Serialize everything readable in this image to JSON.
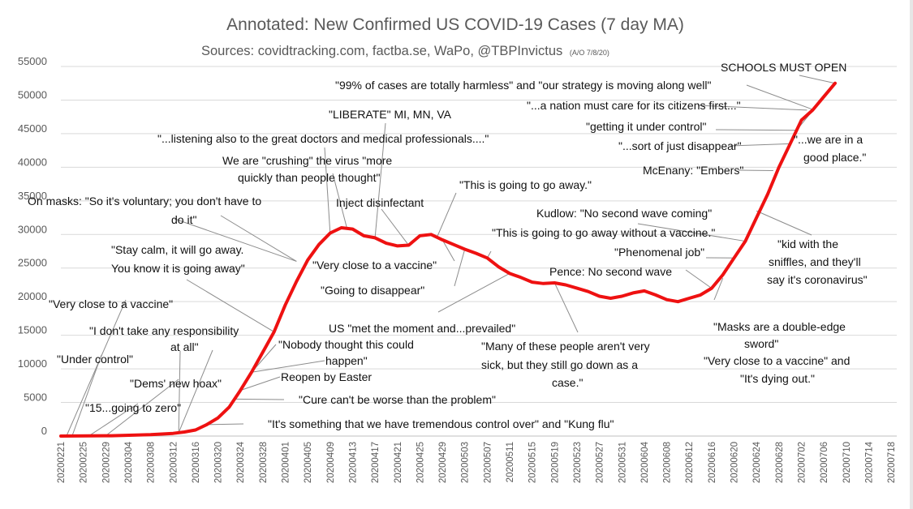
{
  "chart_data": {
    "type": "line",
    "title": "Annotated: New Confirmed US COVID-19 Cases (7 day MA)",
    "subtitle": "Sources: covidtracking.com, factba.se, WaPo, @TBPInvictus",
    "subtitle_note": "(A/O 7/8/20)",
    "ylim": [
      0,
      55000
    ],
    "yticks": [
      "0",
      "5000",
      "10000",
      "15000",
      "20000",
      "25000",
      "30000",
      "35000",
      "40000",
      "45000",
      "50000",
      "55000"
    ],
    "xticks": [
      "20200221",
      "20200225",
      "20200229",
      "20200304",
      "20200308",
      "20200312",
      "20200316",
      "20200320",
      "20200324",
      "20200328",
      "20200401",
      "20200405",
      "20200409",
      "20200413",
      "20200417",
      "20200421",
      "20200425",
      "20200429",
      "20200503",
      "20200507",
      "20200511",
      "20200515",
      "20200519",
      "20200523",
      "20200527",
      "20200531",
      "20200604",
      "20200608",
      "20200612",
      "20200616",
      "20200620",
      "20200624",
      "20200628",
      "20200702",
      "20200706",
      "20200710",
      "20200714",
      "20200718"
    ],
    "series": [
      {
        "color": "#ee1111",
        "points": [
          [
            "20200221",
            0
          ],
          [
            "20200301",
            50
          ],
          [
            "20200308",
            200
          ],
          [
            "20200312",
            400
          ],
          [
            "20200314",
            600
          ],
          [
            "20200316",
            900
          ],
          [
            "20200318",
            1700
          ],
          [
            "20200320",
            2700
          ],
          [
            "20200322",
            4300
          ],
          [
            "20200324",
            6800
          ],
          [
            "20200326",
            9500
          ],
          [
            "20200328",
            12500
          ],
          [
            "20200330",
            15500
          ],
          [
            "20200401",
            19500
          ],
          [
            "20200403",
            23000
          ],
          [
            "20200405",
            26200
          ],
          [
            "20200407",
            28500
          ],
          [
            "20200409",
            30200
          ],
          [
            "20200411",
            31000
          ],
          [
            "20200413",
            30800
          ],
          [
            "20200415",
            29800
          ],
          [
            "20200417",
            29500
          ],
          [
            "20200419",
            28700
          ],
          [
            "20200421",
            28300
          ],
          [
            "20200423",
            28400
          ],
          [
            "20200425",
            29800
          ],
          [
            "20200427",
            30000
          ],
          [
            "20200429",
            29200
          ],
          [
            "20200501",
            28500
          ],
          [
            "20200503",
            27800
          ],
          [
            "20200505",
            27200
          ],
          [
            "20200507",
            26500
          ],
          [
            "20200509",
            25200
          ],
          [
            "20200511",
            24200
          ],
          [
            "20200513",
            23600
          ],
          [
            "20200515",
            22900
          ],
          [
            "20200517",
            22700
          ],
          [
            "20200519",
            22800
          ],
          [
            "20200521",
            22500
          ],
          [
            "20200523",
            22000
          ],
          [
            "20200525",
            21500
          ],
          [
            "20200527",
            20800
          ],
          [
            "20200529",
            20500
          ],
          [
            "20200531",
            20800
          ],
          [
            "20200602",
            21300
          ],
          [
            "20200604",
            21600
          ],
          [
            "20200606",
            21000
          ],
          [
            "20200608",
            20300
          ],
          [
            "20200610",
            20000
          ],
          [
            "20200612",
            20500
          ],
          [
            "20200614",
            21000
          ],
          [
            "20200616",
            22000
          ],
          [
            "20200618",
            24000
          ],
          [
            "20200620",
            26500
          ],
          [
            "20200622",
            29000
          ],
          [
            "20200624",
            32500
          ],
          [
            "20200626",
            36000
          ],
          [
            "20200628",
            40000
          ],
          [
            "20200630",
            43500
          ],
          [
            "20200702",
            47000
          ],
          [
            "20200704",
            48500
          ],
          [
            "20200706",
            50500
          ],
          [
            "20200708",
            52500
          ]
        ]
      }
    ],
    "annotations": [
      {
        "text": "\"Very close to a vaccine\"",
        "date": "20200222",
        "value": 0
      },
      {
        "text": "\"Under control\"",
        "date": "20200223",
        "value": 0
      },
      {
        "text": "\"I don't take any responsibility",
        "date": "20200313",
        "value": 500
      },
      {
        "text": "at all\"",
        "date": "20200313",
        "value": 500
      },
      {
        "text": "\"Dems' new hoax\"",
        "date": "20200229",
        "value": 50
      },
      {
        "text": "\"15...going to zero\"",
        "date": "20200226",
        "value": 20
      },
      {
        "text": "\"It's something that we have tremendous control over\" and \"Kung flu\"",
        "date": "20200318",
        "value": 1700
      },
      {
        "text": "\"Cure can't be worse than the problem\"",
        "date": "20200323",
        "value": 5500
      },
      {
        "text": "Reopen by Easter",
        "date": "20200324",
        "value": 6800
      },
      {
        "text": "\"Nobody thought this could",
        "date": "20200326",
        "value": 9500
      },
      {
        "text": "happen\"",
        "date": "20200326",
        "value": 9500
      },
      {
        "text": "\"Stay calm, it will go away.",
        "date": "20200330",
        "value": 15500
      },
      {
        "text": "You know it is going away\"",
        "date": "20200330",
        "value": 15500
      },
      {
        "text": "On masks: \"So it's voluntary; you don't have to",
        "date": "20200403",
        "value": 26000
      },
      {
        "text": "do it\"",
        "date": "20200403",
        "value": 26000
      },
      {
        "text": "We are \"crushing\" the virus \"more",
        "date": "20200412",
        "value": 30900
      },
      {
        "text": "quickly than people thought\"",
        "date": "20200412",
        "value": 30900
      },
      {
        "text": "\"...listening also to the great doctors and medical professionals....\"",
        "date": "20200409",
        "value": 30200
      },
      {
        "text": "\"LIBERATE\" MI, MN, VA",
        "date": "20200417",
        "value": 29500
      },
      {
        "text": "Inject disinfectant",
        "date": "20200423",
        "value": 28400
      },
      {
        "text": "\"This is going to go away.\"",
        "date": "20200428",
        "value": 29500
      },
      {
        "text": "\"Very close to a vaccine\"",
        "date": "20200429",
        "value": 29200
      },
      {
        "text": "\"Going to disappear\"",
        "date": "20200503",
        "value": 27800
      },
      {
        "text": "US \"met the moment and...prevailed\"",
        "date": "20200511",
        "value": 24200
      },
      {
        "text": "\"Many of these people aren't very",
        "date": "20200519",
        "value": 22800
      },
      {
        "text": "sick, but they still go down as a",
        "date": "20200519",
        "value": 22800
      },
      {
        "text": "case.\"",
        "date": "20200519",
        "value": 22800
      },
      {
        "text": "\"This is going to go away without a vaccine.\"",
        "date": "20200507",
        "value": 26500
      },
      {
        "text": "Kudlow: \"No second wave coming\"",
        "date": "20200622",
        "value": 29000
      },
      {
        "text": "\"Phenomenal job\"",
        "date": "20200620",
        "value": 26500
      },
      {
        "text": "Pence: No second wave",
        "date": "20200616",
        "value": 22000
      },
      {
        "text": "\"Masks are a double-edge",
        "date": "20200618",
        "value": 23500
      },
      {
        "text": "sword\"",
        "date": "20200618",
        "value": 23500
      },
      {
        "text": "\"Very close to a vaccine\" and",
        "date": "20200618",
        "value": 23500
      },
      {
        "text": "\"It's dying out.\"",
        "date": "20200618",
        "value": 23500
      },
      {
        "text": "\"kid with the",
        "date": "20200624",
        "value": 33500
      },
      {
        "text": "sniffles, and they'll",
        "date": "20200624",
        "value": 33500
      },
      {
        "text": "say it's coronavirus\"",
        "date": "20200624",
        "value": 33500
      },
      {
        "text": "McEnany: \"Embers\"",
        "date": "20200627",
        "value": 39500
      },
      {
        "text": "\"...sort of just disappear\"",
        "date": "20200630",
        "value": 43500
      },
      {
        "text": "\"getting it under control\"",
        "date": "20200701",
        "value": 45500
      },
      {
        "text": "\"...a nation must care for its citizens first...\"",
        "date": "20200703",
        "value": 48500
      },
      {
        "text": "\"99% of cases are totally harmless\" and \"our strategy is moving along well\"",
        "date": "20200704",
        "value": 48600
      },
      {
        "text": "\"...we are in a",
        "date": "20200707",
        "value": 51500
      },
      {
        "text": "good place.\"",
        "date": "20200707",
        "value": 51500
      },
      {
        "text": "SCHOOLS MUST OPEN",
        "date": "20200708",
        "value": 52500
      }
    ]
  }
}
